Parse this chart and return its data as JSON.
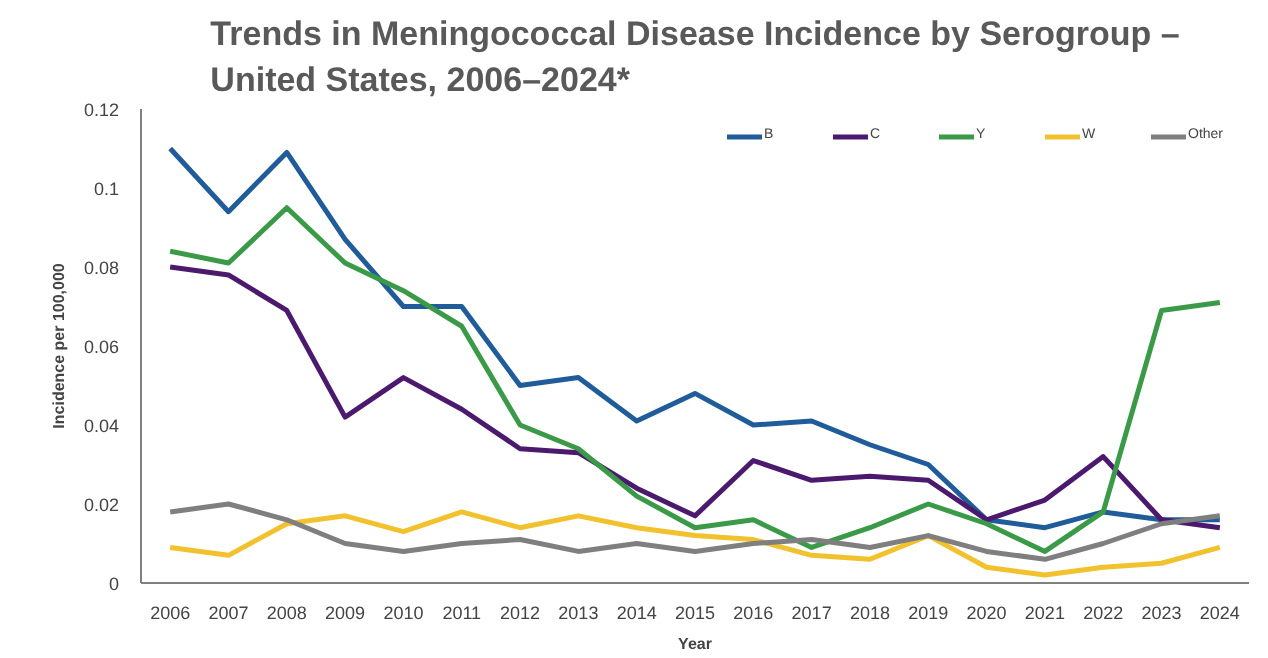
{
  "chart_data": {
    "type": "line",
    "title": "Trends in Meningococcal Disease Incidence by Serogroup –\nUnited States, 2006–2024*",
    "xlabel": "Year",
    "ylabel": "Incidence per 100,000",
    "categories": [
      "2006",
      "2007",
      "2008",
      "2009",
      "2010",
      "2011",
      "2012",
      "2013",
      "2014",
      "2015",
      "2016",
      "2017",
      "2018",
      "2019",
      "2020",
      "2021",
      "2022",
      "2023",
      "2024"
    ],
    "series": [
      {
        "name": "B",
        "color": "#1f5c99",
        "values": [
          0.11,
          0.094,
          0.109,
          0.087,
          0.07,
          0.07,
          0.05,
          0.052,
          0.041,
          0.048,
          0.04,
          0.041,
          0.035,
          0.03,
          0.016,
          0.014,
          0.018,
          0.016,
          0.016
        ]
      },
      {
        "name": "C",
        "color": "#4b1a6e",
        "values": [
          0.08,
          0.078,
          0.069,
          0.042,
          0.052,
          0.044,
          0.034,
          0.033,
          0.024,
          0.017,
          0.031,
          0.026,
          0.027,
          0.026,
          0.016,
          0.021,
          0.032,
          0.016,
          0.014
        ]
      },
      {
        "name": "Y",
        "color": "#3a9a47",
        "values": [
          0.084,
          0.081,
          0.095,
          0.081,
          0.074,
          0.065,
          0.04,
          0.034,
          0.022,
          0.014,
          0.016,
          0.009,
          0.014,
          0.02,
          0.015,
          0.008,
          0.018,
          0.069,
          0.071
        ]
      },
      {
        "name": "W",
        "color": "#f2c12e",
        "values": [
          0.009,
          0.007,
          0.015,
          0.017,
          0.013,
          0.018,
          0.014,
          0.017,
          0.014,
          0.012,
          0.011,
          0.007,
          0.006,
          0.012,
          0.004,
          0.002,
          0.004,
          0.005,
          0.009
        ]
      },
      {
        "name": "Other",
        "color": "#7f7f7f",
        "values": [
          0.018,
          0.02,
          0.016,
          0.01,
          0.008,
          0.01,
          0.011,
          0.008,
          0.01,
          0.008,
          0.01,
          0.011,
          0.009,
          0.012,
          0.008,
          0.006,
          0.01,
          0.015,
          0.017
        ]
      }
    ],
    "ylim": [
      0,
      0.12
    ],
    "yticks": [
      0,
      0.02,
      0.04,
      0.06,
      0.08,
      0.1,
      0.12
    ],
    "grid": false,
    "legend": "top right",
    "marker": "none",
    "line_style": "solid"
  }
}
